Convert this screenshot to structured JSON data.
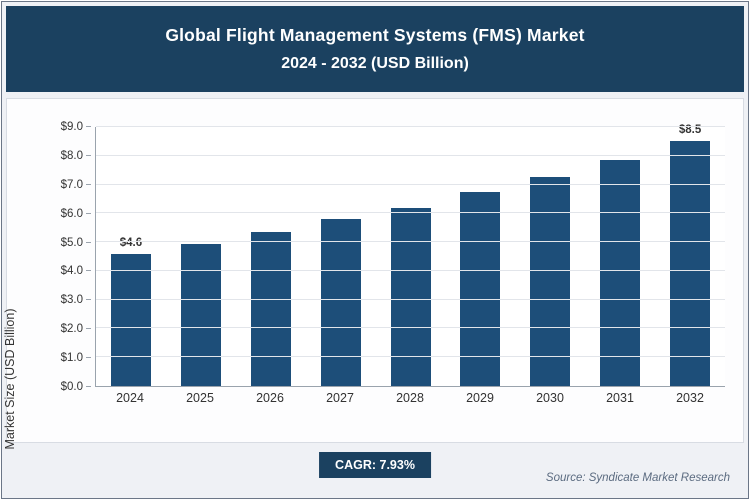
{
  "header": {
    "title_line1": "Global Flight Management Systems (FMS) Market",
    "title_line2": "2024 - 2032 (USD Billion)"
  },
  "chart_data": {
    "type": "bar",
    "title": "Global Flight Management Systems (FMS) Market 2024 - 2032 (USD Billion)",
    "categories": [
      "2024",
      "2025",
      "2026",
      "2027",
      "2028",
      "2029",
      "2030",
      "2031",
      "2032"
    ],
    "values": [
      4.6,
      4.95,
      5.35,
      5.8,
      6.2,
      6.75,
      7.25,
      7.85,
      8.5
    ],
    "value_labels": [
      "$4.6",
      "",
      "",
      "",
      "",
      "",
      "",
      "",
      "$8.5"
    ],
    "xlabel": "",
    "ylabel": "Market Size (USD Billion)",
    "ylim": [
      0,
      9
    ],
    "ytick_labels": [
      "$0.0",
      "$1.0",
      "$2.0",
      "$3.0",
      "$4.0",
      "$5.0",
      "$6.0",
      "$7.0",
      "$8.0",
      "$9.0"
    ],
    "grid": true,
    "legend": "none",
    "bar_color": "#1d4e79"
  },
  "footer": {
    "cagr_label": "CAGR: 7.93%",
    "source": "Source: Syndicate Market Research"
  }
}
